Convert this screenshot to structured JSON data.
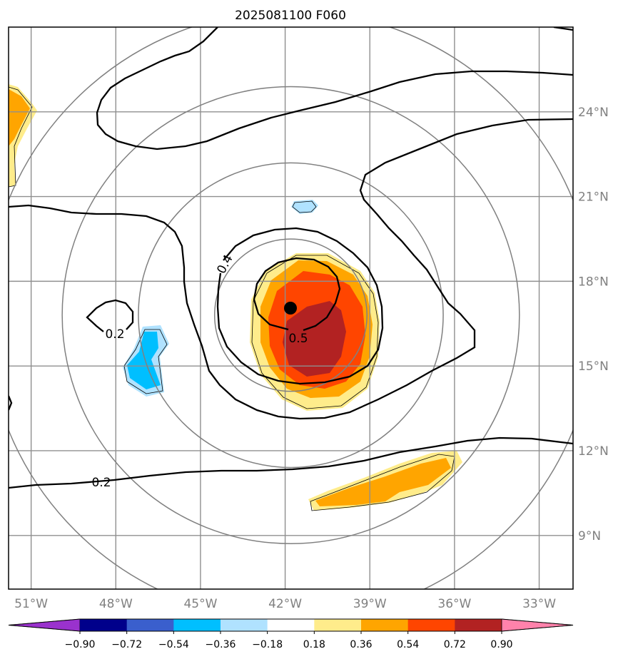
{
  "chart_data": {
    "type": "contour_map",
    "title": "2025081100 F060",
    "x_ticks": [
      "51°W",
      "48°W",
      "45°W",
      "42°W",
      "39°W",
      "36°W",
      "33°W"
    ],
    "x_tick_values": [
      -51,
      -48,
      -45,
      -42,
      -39,
      -36,
      -33
    ],
    "y_ticks": [
      "24°N",
      "21°N",
      "18°N",
      "15°N",
      "12°N",
      "9°N"
    ],
    "y_tick_values": [
      24,
      21,
      18,
      15,
      12,
      9
    ],
    "xlim": [
      -51.8,
      -31.8
    ],
    "ylim": [
      7.1,
      27.0
    ],
    "grid": true,
    "center": {
      "lon": -41.8,
      "lat": 16.8
    },
    "range_rings_deg": [
      2.7,
      5.4,
      8.1,
      10.8
    ],
    "contour_labels": [
      "0.4",
      "0.5",
      "0.2",
      "0.2"
    ],
    "colorbar": {
      "ticks": [
        "−0.90",
        "−0.72",
        "−0.54",
        "−0.36",
        "−0.18",
        "0.18",
        "0.36",
        "0.54",
        "0.72",
        "0.90"
      ],
      "colors": [
        "#9a32cd",
        "#00008b",
        "#3a5fcd",
        "#00bfff",
        "#b0e2ff",
        "#ffffff",
        "#ffec8b",
        "#ffa500",
        "#ff4500",
        "#b22222",
        "#ff82ab"
      ]
    },
    "shaded_regions": [
      {
        "name": "warm-core",
        "fill": "#ffec8b"
      },
      {
        "name": "warm-core-orange",
        "fill": "#ffa500"
      },
      {
        "name": "warm-core-red",
        "fill": "#ff4500"
      },
      {
        "name": "warm-core-darkred",
        "fill": "#b22222"
      },
      {
        "name": "south-band",
        "fill": "#ffec8b"
      },
      {
        "name": "south-band-orange",
        "fill": "#ffa500"
      },
      {
        "name": "west-edge",
        "fill": "#ffec8b"
      },
      {
        "name": "west-edge-orange",
        "fill": "#ffa500"
      },
      {
        "name": "blue-blob-west",
        "fill": "#b0e2ff"
      },
      {
        "name": "blue-blob-west-core",
        "fill": "#00bfff"
      },
      {
        "name": "blue-blob-north",
        "fill": "#b0e2ff"
      }
    ]
  }
}
